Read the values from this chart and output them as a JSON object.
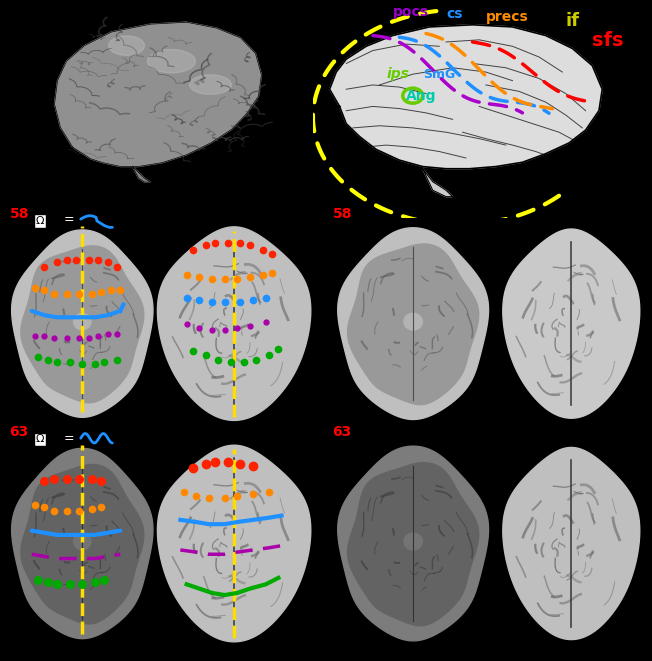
{
  "bg_color": "#000000",
  "white_bg": "#ffffff",
  "fig_width": 6.52,
  "fig_height": 6.61,
  "dpi": 100,
  "top_row": {
    "left_bg": "#000000",
    "right_bg": "#ffffff"
  },
  "labels": {
    "precs": {
      "text": "precs",
      "color": "#ff8c00"
    },
    "cs": {
      "text": "cs",
      "color": "#1e90ff"
    },
    "pocs": {
      "text": "pocs",
      "color": "#9900cc"
    },
    "if": {
      "text": "if",
      "color": "#cccc00"
    },
    "sfs": {
      "text": "sfs",
      "color": "#ff0000"
    },
    "ips": {
      "text": "ips",
      "color": "#66cc00"
    },
    "SmG": {
      "text": "SmG",
      "color": "#1e90ff"
    },
    "Ang": {
      "text": "Ang",
      "color": "#00ccaa"
    }
  },
  "sulci_colors": {
    "red": "#ff2200",
    "orange": "#ff8800",
    "blue": "#1e90ff",
    "purple": "#aa00aa",
    "green": "#00aa00",
    "yellow": "#ffdd00"
  }
}
